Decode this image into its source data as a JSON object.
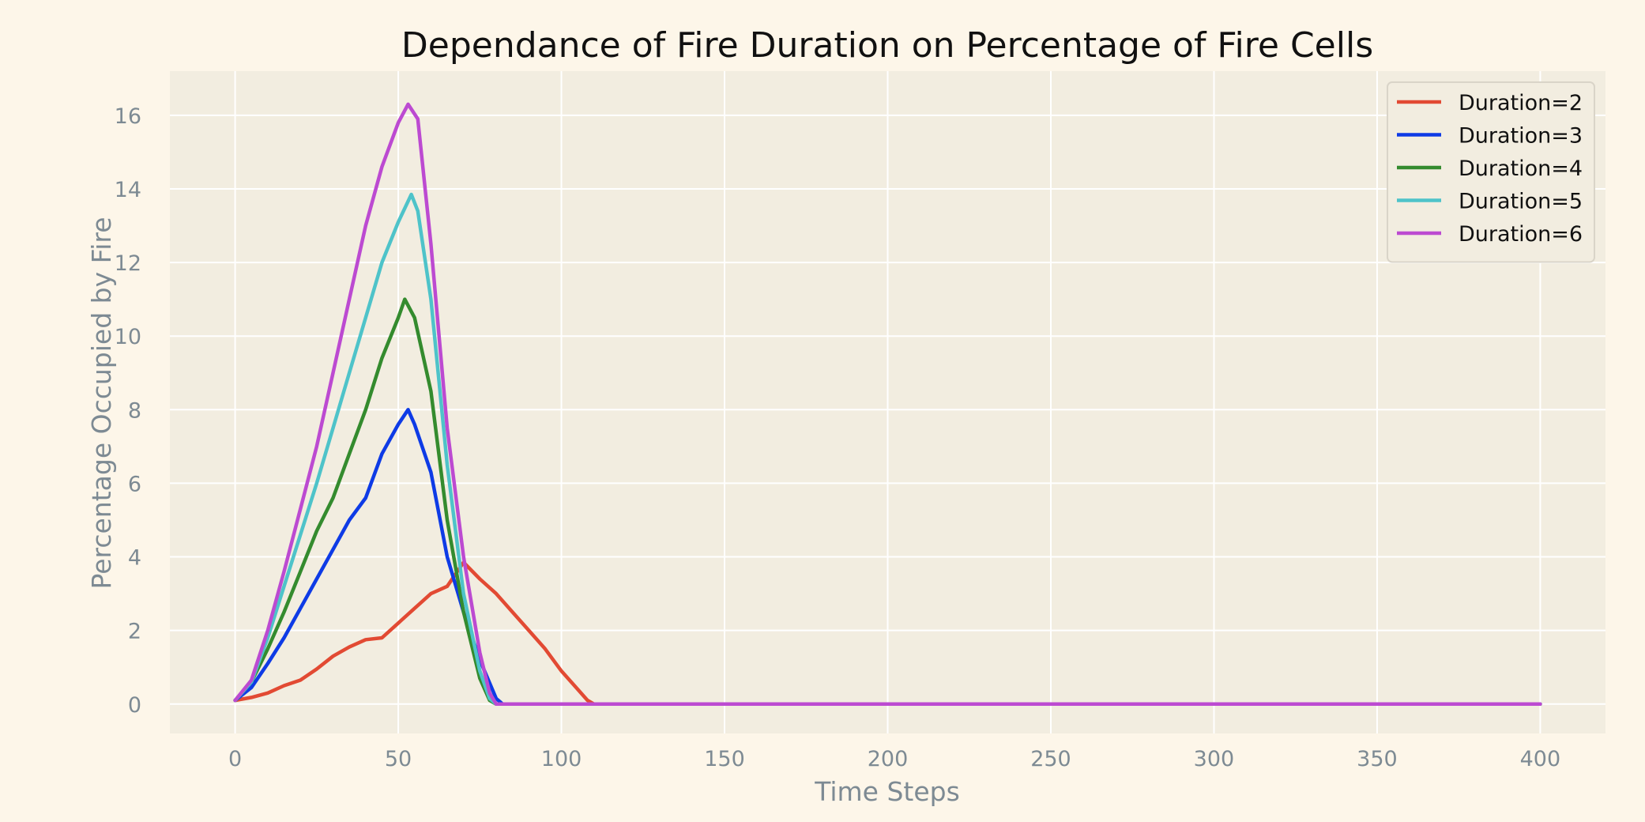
{
  "chart_data": {
    "type": "line",
    "title": "Dependance of Fire Duration on Percentage of Fire Cells",
    "xlabel": "Time Steps",
    "ylabel": "Percentage Occupied by Fire",
    "xlim": [
      -20,
      420
    ],
    "ylim": [
      -0.8,
      17.2
    ],
    "xticks": [
      0,
      50,
      100,
      150,
      200,
      250,
      300,
      350,
      400
    ],
    "yticks": [
      0,
      2,
      4,
      6,
      8,
      10,
      12,
      14,
      16
    ],
    "grid": true,
    "legend_position": "top-right",
    "colors": {
      "background": "#fdf6e9",
      "plot_area": "#f2ede0",
      "grid": "#ffffff"
    },
    "series": [
      {
        "name": "Duration=2",
        "color": "#e24a33",
        "points": [
          [
            0,
            0.1
          ],
          [
            5,
            0.18
          ],
          [
            10,
            0.3
          ],
          [
            15,
            0.5
          ],
          [
            20,
            0.65
          ],
          [
            25,
            0.95
          ],
          [
            30,
            1.3
          ],
          [
            35,
            1.55
          ],
          [
            40,
            1.75
          ],
          [
            45,
            1.8
          ],
          [
            50,
            2.2
          ],
          [
            55,
            2.6
          ],
          [
            60,
            3.0
          ],
          [
            65,
            3.2
          ],
          [
            70,
            3.85
          ],
          [
            75,
            3.4
          ],
          [
            80,
            3.0
          ],
          [
            85,
            2.5
          ],
          [
            90,
            2.0
          ],
          [
            95,
            1.5
          ],
          [
            100,
            0.9
          ],
          [
            105,
            0.4
          ],
          [
            108,
            0.1
          ],
          [
            110,
            0.0
          ],
          [
            400,
            0.0
          ]
        ]
      },
      {
        "name": "Duration=3",
        "color": "#0e3be6",
        "points": [
          [
            0,
            0.1
          ],
          [
            5,
            0.45
          ],
          [
            10,
            1.1
          ],
          [
            15,
            1.8
          ],
          [
            20,
            2.6
          ],
          [
            25,
            3.4
          ],
          [
            30,
            4.2
          ],
          [
            35,
            5.0
          ],
          [
            40,
            5.6
          ],
          [
            45,
            6.8
          ],
          [
            50,
            7.6
          ],
          [
            53,
            8.0
          ],
          [
            55,
            7.6
          ],
          [
            60,
            6.3
          ],
          [
            65,
            4.0
          ],
          [
            70,
            2.5
          ],
          [
            75,
            1.2
          ],
          [
            80,
            0.15
          ],
          [
            82,
            0.0
          ],
          [
            400,
            0.0
          ]
        ]
      },
      {
        "name": "Duration=4",
        "color": "#348b2e",
        "points": [
          [
            0,
            0.1
          ],
          [
            5,
            0.6
          ],
          [
            10,
            1.5
          ],
          [
            15,
            2.5
          ],
          [
            20,
            3.6
          ],
          [
            25,
            4.7
          ],
          [
            30,
            5.6
          ],
          [
            35,
            6.8
          ],
          [
            40,
            8.0
          ],
          [
            45,
            9.4
          ],
          [
            50,
            10.5
          ],
          [
            52,
            11.0
          ],
          [
            55,
            10.5
          ],
          [
            60,
            8.5
          ],
          [
            65,
            5.0
          ],
          [
            70,
            2.5
          ],
          [
            75,
            0.7
          ],
          [
            78,
            0.1
          ],
          [
            80,
            0.0
          ],
          [
            400,
            0.0
          ]
        ]
      },
      {
        "name": "Duration=5",
        "color": "#4ec3c9",
        "points": [
          [
            0,
            0.1
          ],
          [
            5,
            0.6
          ],
          [
            10,
            1.8
          ],
          [
            15,
            3.2
          ],
          [
            20,
            4.6
          ],
          [
            25,
            6.0
          ],
          [
            30,
            7.5
          ],
          [
            35,
            9.0
          ],
          [
            40,
            10.5
          ],
          [
            45,
            12.0
          ],
          [
            50,
            13.1
          ],
          [
            54,
            13.85
          ],
          [
            56,
            13.4
          ],
          [
            60,
            11.0
          ],
          [
            65,
            6.5
          ],
          [
            70,
            3.0
          ],
          [
            75,
            0.9
          ],
          [
            78,
            0.15
          ],
          [
            80,
            0.0
          ],
          [
            400,
            0.0
          ]
        ]
      },
      {
        "name": "Duration=6",
        "color": "#bc4ad1",
        "points": [
          [
            0,
            0.1
          ],
          [
            5,
            0.65
          ],
          [
            10,
            2.0
          ],
          [
            15,
            3.6
          ],
          [
            20,
            5.3
          ],
          [
            25,
            7.0
          ],
          [
            30,
            9.0
          ],
          [
            35,
            11.0
          ],
          [
            40,
            13.0
          ],
          [
            45,
            14.6
          ],
          [
            50,
            15.8
          ],
          [
            53,
            16.3
          ],
          [
            56,
            15.9
          ],
          [
            60,
            12.5
          ],
          [
            65,
            7.5
          ],
          [
            70,
            4.0
          ],
          [
            75,
            1.4
          ],
          [
            78,
            0.3
          ],
          [
            80,
            0.0
          ],
          [
            400,
            0.0
          ]
        ]
      }
    ]
  }
}
